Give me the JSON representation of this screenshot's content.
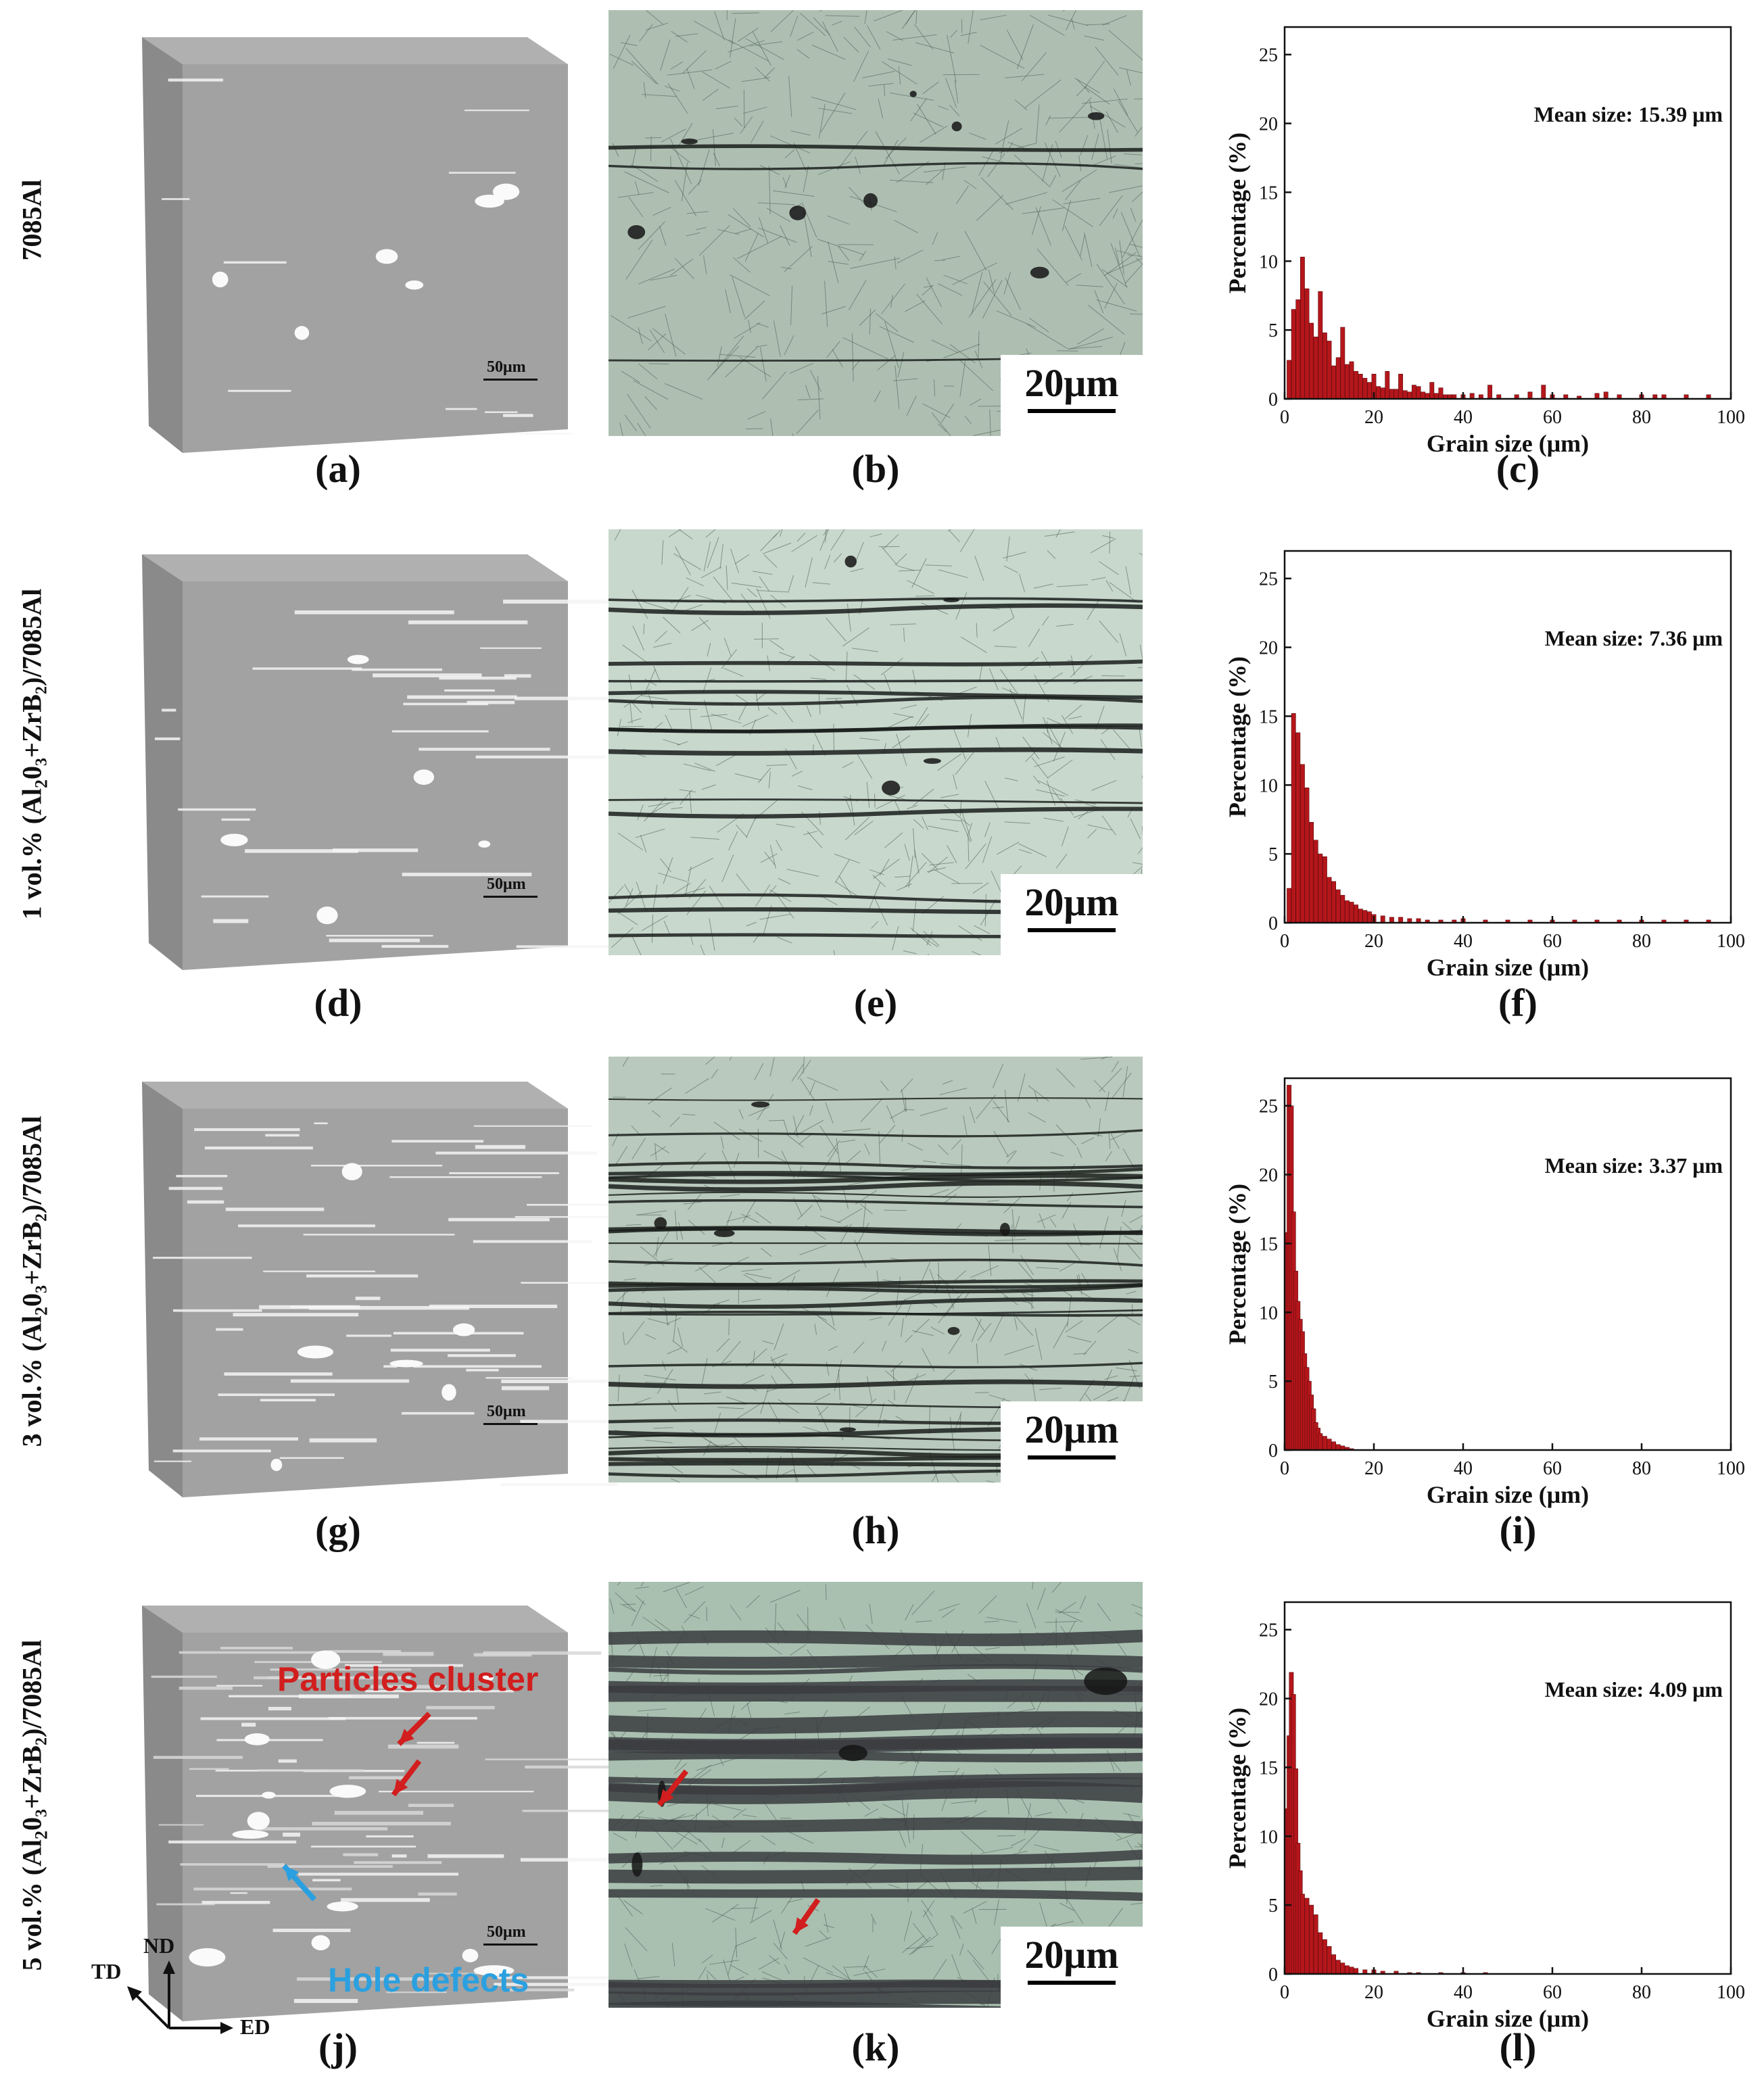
{
  "rows": [
    {
      "label": "7085Al",
      "label_sub": "",
      "label_tail": "",
      "panel_labels": [
        "(a)",
        "(b)",
        "(c)"
      ],
      "cube_scale": "50μm",
      "micro_scale": "20μm"
    },
    {
      "label": "1 vol.% (Al",
      "label_sub": "2",
      "label_tail": "0₃+ZrB₂)/7085Al",
      "panel_labels": [
        "(d)",
        "(e)",
        "(f)"
      ],
      "cube_scale": "50μm",
      "micro_scale": "20μm"
    },
    {
      "label": "3 vol.% (Al",
      "label_sub": "2",
      "label_tail": "0₃+ZrB₂)/7085Al",
      "panel_labels": [
        "(g)",
        "(h)",
        "(i)"
      ],
      "cube_scale": "50μm",
      "micro_scale": "20μm"
    },
    {
      "label": "5 vol.% (Al",
      "label_sub": "2",
      "label_tail": "0₃+ZrB₂)/7085Al",
      "panel_labels": [
        "(j)",
        "(k)",
        "(l)"
      ],
      "cube_scale": "50μm",
      "micro_scale": "20μm"
    }
  ],
  "annotations": {
    "particles_cluster": "Particles cluster",
    "hole_defects": "Hole defects",
    "axes": {
      "nd": "ND",
      "td": "TD",
      "ed": "ED"
    }
  },
  "colors": {
    "bar": "#b5161b",
    "cube_face": "#9a9a9a",
    "micro_bg": "#b9c9bd",
    "annot_red": "#d21e1e",
    "annot_blue": "#2aa0e0"
  },
  "chart_data": [
    {
      "type": "bar",
      "xlabel": "Grain size (μm)",
      "ylabel": "Percentage (%)",
      "xlim": [
        0,
        100
      ],
      "ylim": [
        0,
        27
      ],
      "xticks": [
        0,
        20,
        40,
        60,
        80,
        100
      ],
      "yticks": [
        0,
        5,
        10,
        15,
        20,
        25
      ],
      "annotation": "Mean size: 15.39 μm",
      "x": [
        1,
        2,
        3,
        4,
        5,
        6,
        7,
        8,
        9,
        10,
        11,
        12,
        13,
        14,
        15,
        16,
        17,
        18,
        19,
        20,
        21,
        22,
        23,
        24,
        25,
        26,
        27,
        28,
        29,
        30,
        31,
        32,
        33,
        34,
        35,
        36,
        37,
        38,
        40,
        42,
        44,
        46,
        48,
        52,
        55,
        58,
        60,
        63,
        66,
        70,
        72,
        75,
        80,
        83,
        85,
        90,
        95
      ],
      "values": [
        2.8,
        6.5,
        7.2,
        10.3,
        8.0,
        5.5,
        4.5,
        7.8,
        4.8,
        4.2,
        2.4,
        3.0,
        5.2,
        2.5,
        2.7,
        2.0,
        1.8,
        1.5,
        1.2,
        1.8,
        0.9,
        0.8,
        2.0,
        0.7,
        0.7,
        1.8,
        0.6,
        0.5,
        1.0,
        0.9,
        0.5,
        0.4,
        1.2,
        0.4,
        0.8,
        0.3,
        0.3,
        0.3,
        0.3,
        0.4,
        0.3,
        1.0,
        0.3,
        0.3,
        0.5,
        1.0,
        0.3,
        0.3,
        0.2,
        0.4,
        0.5,
        0.3,
        0.3,
        0.3,
        0.3,
        0.3,
        0.3
      ]
    },
    {
      "type": "bar",
      "xlabel": "Grain size (μm)",
      "ylabel": "Percentage (%)",
      "xlim": [
        0,
        100
      ],
      "ylim": [
        0,
        27
      ],
      "xticks": [
        0,
        20,
        40,
        60,
        80,
        100
      ],
      "yticks": [
        0,
        5,
        10,
        15,
        20,
        25
      ],
      "annotation": "Mean size: 7.36 μm",
      "x": [
        1,
        2,
        3,
        4,
        5,
        6,
        7,
        8,
        9,
        10,
        11,
        12,
        13,
        14,
        15,
        16,
        17,
        18,
        19,
        20,
        22,
        24,
        26,
        28,
        30,
        32,
        35,
        38,
        40,
        45,
        50,
        55,
        60,
        65,
        70,
        75,
        80,
        85,
        90,
        95
      ],
      "values": [
        2.5,
        15.2,
        13.8,
        11.5,
        9.8,
        7.3,
        6.0,
        5.0,
        4.8,
        3.3,
        3.0,
        2.4,
        2.0,
        1.6,
        1.5,
        1.3,
        1.0,
        0.9,
        0.8,
        0.6,
        0.5,
        0.4,
        0.4,
        0.3,
        0.3,
        0.2,
        0.2,
        0.2,
        0.3,
        0.2,
        0.2,
        0.2,
        0.2,
        0.2,
        0.2,
        0.2,
        0.2,
        0.2,
        0.2,
        0.2
      ]
    },
    {
      "type": "bar",
      "xlabel": "Grain size (μm)",
      "ylabel": "Percentage (%)",
      "xlim": [
        0,
        100
      ],
      "ylim": [
        0,
        27
      ],
      "xticks": [
        0,
        20,
        40,
        60,
        80,
        100
      ],
      "yticks": [
        0,
        5,
        10,
        15,
        20,
        25
      ],
      "annotation": "Mean size: 3.37 μm",
      "x": [
        0.5,
        1,
        1.5,
        2,
        2.5,
        3,
        3.5,
        4,
        4.5,
        5,
        5.5,
        6,
        6.5,
        7,
        7.5,
        8,
        9,
        10,
        11,
        12,
        13,
        14,
        15
      ],
      "values": [
        15.8,
        26.5,
        25.0,
        17.3,
        13.0,
        10.8,
        9.5,
        8.6,
        7.0,
        6.0,
        5.0,
        4.0,
        3.0,
        2.0,
        1.6,
        1.2,
        1.0,
        0.8,
        0.6,
        0.4,
        0.3,
        0.2,
        0.1
      ]
    },
    {
      "type": "bar",
      "xlabel": "Grain size (μm)",
      "ylabel": "Percentage (%)",
      "xlim": [
        0,
        100
      ],
      "ylim": [
        0,
        27
      ],
      "xticks": [
        0,
        20,
        40,
        60,
        80,
        100
      ],
      "yticks": [
        0,
        5,
        10,
        15,
        20,
        25
      ],
      "annotation": "Mean size: 4.09 μm",
      "x": [
        0.5,
        1,
        1.5,
        2,
        2.5,
        3,
        3.5,
        4,
        5,
        6,
        7,
        8,
        9,
        10,
        11,
        12,
        13,
        14,
        15,
        16,
        18,
        20,
        22,
        25,
        28,
        30,
        35,
        40,
        45
      ],
      "values": [
        12.0,
        17.3,
        21.9,
        20.3,
        14.9,
        9.5,
        7.5,
        5.8,
        5.5,
        5.0,
        4.3,
        3.0,
        2.5,
        2.0,
        1.4,
        1.0,
        0.8,
        0.6,
        0.5,
        0.4,
        0.3,
        0.3,
        0.2,
        0.2,
        0.1,
        0.1,
        0.1,
        0.1,
        0.1
      ]
    }
  ]
}
